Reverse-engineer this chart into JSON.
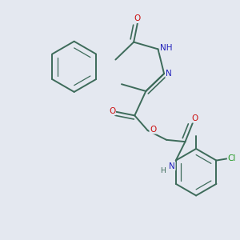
{
  "bg": "#e4e8f0",
  "bc": "#3d6b5a",
  "bw": 1.4,
  "ibw": 0.9,
  "colors": {
    "O": "#cc1111",
    "N": "#2020bb",
    "Cl": "#229922",
    "default": "#3d6b5a"
  },
  "fs": 7.5,
  "figsize": [
    3.0,
    3.0
  ],
  "dpi": 100
}
